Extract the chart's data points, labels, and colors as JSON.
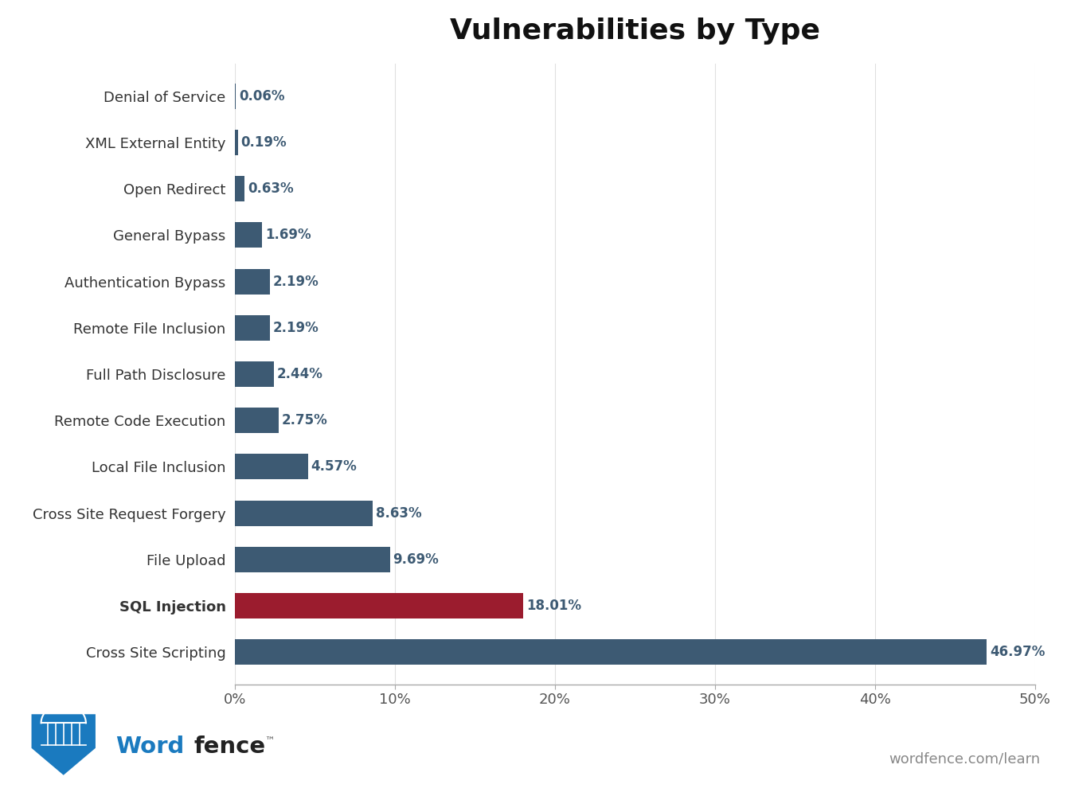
{
  "title": "Vulnerabilities by Type",
  "categories": [
    "Cross Site Scripting",
    "SQL Injection",
    "File Upload",
    "Cross Site Request Forgery",
    "Local File Inclusion",
    "Remote Code Execution",
    "Full Path Disclosure",
    "Remote File Inclusion",
    "Authentication Bypass",
    "General Bypass",
    "Open Redirect",
    "XML External Entity",
    "Denial of Service"
  ],
  "values": [
    46.97,
    18.01,
    9.69,
    8.63,
    4.57,
    2.75,
    2.44,
    2.19,
    2.19,
    1.69,
    0.63,
    0.19,
    0.06
  ],
  "bar_colors": [
    "#3d5a73",
    "#9b1c2e",
    "#3d5a73",
    "#3d5a73",
    "#3d5a73",
    "#3d5a73",
    "#3d5a73",
    "#3d5a73",
    "#3d5a73",
    "#3d5a73",
    "#3d5a73",
    "#3d5a73",
    "#3d5a73"
  ],
  "value_labels": [
    "46.97%",
    "18.01%",
    "9.69%",
    "8.63%",
    "4.57%",
    "2.75%",
    "2.44%",
    "2.19%",
    "2.19%",
    "1.69%",
    "0.63%",
    "0.19%",
    "0.06%"
  ],
  "bold_categories": [
    "SQL Injection"
  ],
  "xlim": [
    0,
    50
  ],
  "xticks": [
    0,
    10,
    20,
    30,
    40,
    50
  ],
  "xtick_labels": [
    "0%",
    "10%",
    "20%",
    "30%",
    "40%",
    "50%"
  ],
  "background_color": "#ffffff",
  "title_fontsize": 26,
  "axis_tick_fontsize": 13,
  "bar_label_fontsize": 12,
  "category_fontsize": 13,
  "wordfence_text": "wordfence.com/learn",
  "wordfence_color": "#888888",
  "word_color": "#1a7abf",
  "fence_color": "#222222",
  "label_color": "#3d5a73",
  "grid_color": "#e0e0e0",
  "spine_color": "#aaaaaa"
}
